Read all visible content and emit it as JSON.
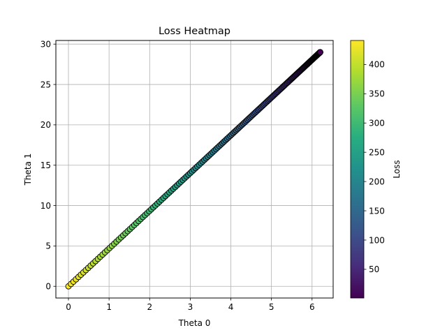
{
  "chart_data": {
    "type": "scatter",
    "title": "Loss Heatmap",
    "xlabel": "Theta 0",
    "ylabel": "Theta 1",
    "xlim": [
      -0.31,
      6.52
    ],
    "ylim": [
      -1.45,
      30.45
    ],
    "xticks": [
      0,
      1,
      2,
      3,
      4,
      5,
      6
    ],
    "yticks": [
      0,
      5,
      10,
      15,
      20,
      25,
      30
    ],
    "grid": true,
    "colormap": "viridis",
    "colorbar": {
      "label": "Loss",
      "range": [
        1,
        441
      ],
      "ticks": [
        50,
        100,
        150,
        200,
        250,
        300,
        350,
        400
      ]
    },
    "series": [
      {
        "points_start": {
          "x": 0.0,
          "y": 0.0,
          "loss": 441
        },
        "points_end": {
          "x": 6.2,
          "y": 29.0,
          "loss": 1
        },
        "point_count": 200,
        "marker_edge_color": "#000000"
      }
    ]
  }
}
